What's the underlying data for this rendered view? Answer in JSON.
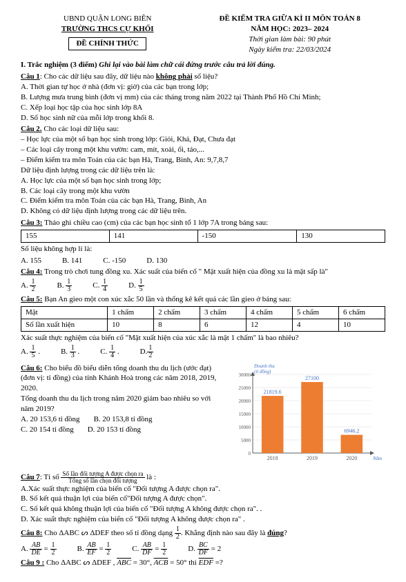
{
  "header": {
    "district": "UBND QUẬN LONG BIÊN",
    "school": "TRƯỜNG THCS CỰ KHỐI",
    "official": "ĐỀ CHÍNH THỨC",
    "exam_title": "ĐỀ KIỂM TRA GIỮA KÌ II MÔN TOÁN 8",
    "year": "NĂM HỌC: 2023– 2024",
    "duration": "Thời gian làm bài: 90 phút",
    "date": "Ngày kiểm tra: 22/03/2024"
  },
  "part1": {
    "title": "I. Trắc nghiệm (3 điểm)",
    "instr": "Ghi lại vào bài làm chữ cái đứng trước câu trả lời đúng."
  },
  "q1": {
    "stem_a": "Câu 1",
    "stem_b": ": Cho các dữ liệu sau đây, dữ liệu nào ",
    "stem_c": "không phải",
    "stem_d": " số liệu?",
    "a": "A. Thời gian tự học ở nhà (đơn vị: giờ) của các bạn trong lớp;",
    "b": "B. Lượng mưa trung bình (đơn vị mm) của các tháng trong năm 2022 tại Thành Phố Hồ Chí Minh;",
    "c": "C. Xếp loại học tập của học sinh lớp 8A",
    "d": "D. Số học sinh nữ của mỗi lớp trong khối 8."
  },
  "q2": {
    "stem": "Câu 2.",
    "stem2": " Cho các loại dữ liệu sau:",
    "l1": "– Học lực của một số bạn học sinh trong lớp: Giỏi, Khá, Đạt, Chưa đạt",
    "l2": "– Các loại cây trong một khu vườn: cam, mít, xoài, ổi, táo,...",
    "l3": "– Điểm kiểm tra môn Toán của các bạn Hà, Trang, Bình, An: 9,7,8,7",
    "l4": "Dữ liệu định lượng trong các dữ liệu trên là:",
    "a": "A. Học lực của một số bạn học sinh trong lớp;",
    "b": "B. Các loại cây trong một khu vườn",
    "c": "C. Điểm kiểm tra môn Toán của các bạn Hà, Trang, Bình, An",
    "d": "D. Không có dữ liệu định lượng trong các dữ liệu trên."
  },
  "q3": {
    "stem": "Câu 3:",
    "stem2": " Tháo ghi chiều cao (cm) của các bạn học sinh tổ 1 lớp 7A trong bảng sau:",
    "row": [
      "155",
      "141",
      "-150",
      "130"
    ],
    "q": "Số liệu không hợp lí là:",
    "a": "A. 155",
    "b": "B. 141",
    "c": "C. -150",
    "d": "D. 130"
  },
  "q4": {
    "stem": "Câu 4:",
    "stem2": " Trong trò chơi tung đồng xu. Xác suất của biến cố \" Mặt xuất hiện của đồng xu là mặt sấp là\"",
    "a": "A.",
    "av": {
      "n": "1",
      "d": "2"
    },
    "b": "B.",
    "bv": {
      "n": "1",
      "d": "3"
    },
    "c": "C.",
    "cv": {
      "n": "1",
      "d": "4"
    },
    "d": "D.",
    "dv": {
      "n": "1",
      "d": "5"
    }
  },
  "q5": {
    "stem": "Câu 5:",
    "stem2": " Bạn An gieo một con xúc xắc 50 lần và thống kê kết quả các lần gieo ở bảng sau:",
    "head": [
      "Mặt",
      "1 chấm",
      "2 chấm",
      "3 chấm",
      "4 chấm",
      "5 chấm",
      "6 chấm"
    ],
    "row": [
      "Số lần xuất hiện",
      "10",
      "8",
      "6",
      "12",
      "4",
      "10"
    ],
    "q": "Xác suất thực nghiệm của biến cố \"Mặt xuất hiện của xúc xắc là mặt 1 chấm\" là bao nhiêu?",
    "a": "A.",
    "av": {
      "n": "1",
      "d": "5"
    },
    "b": "B.",
    "bv": {
      "n": "1",
      "d": "3"
    },
    "c": "C.",
    "cv": {
      "n": "1",
      "d": "4"
    },
    "d": "D.",
    "dv": {
      "n": "1",
      "d": "2"
    }
  },
  "q6": {
    "stem": "Câu 6:",
    "stem2": "  Cho biểu đồ biểu diễn tổng doanh thu du lịch (ước đạt) (đơn vị: tỉ đồng) của tỉnh Khánh Hoà trong các năm 2018, 2019, 2020.",
    "q": "Tổng doanh thu du lịch trong năm 2020 giảm bao nhiêu so với năm 2019?",
    "a": "A. 20 153,6 tỉ đồng",
    "b": "B. 20 153,8 tỉ đồng",
    "c": "C. 20 154 tỉ đồng",
    "d": "D. 20 153 tỉ đồng",
    "chart": {
      "type": "bar",
      "ylabel": "Doanh thu\n(tỉ đồng)",
      "xlabel": "Năm",
      "categories": [
        "2018",
        "2019",
        "2020"
      ],
      "values": [
        21819.6,
        27100,
        6946.2
      ],
      "value_labels": [
        "21819.6",
        "27100",
        "6946.2"
      ],
      "bar_color": "#ed7d31",
      "ylim": [
        0,
        30000
      ],
      "ytick_step": 5000,
      "yticks": [
        "0",
        "5000",
        "10000",
        "15000",
        "20000",
        "25000",
        "30000"
      ],
      "label_color": "#4472c4",
      "grid_color": "#d9d9d9",
      "axis_color": "#595959",
      "background": "#ffffff",
      "bar_width": 0.55,
      "label_fontsize": 8
    }
  },
  "q7": {
    "stem": "Câu 7",
    "stem2": ": Tỉ số ",
    "frac": {
      "n": "Số lần đối tượng A được chọn ra",
      "d": "Tổng số lần chọn đối tượng"
    },
    "stem3": "  là :",
    "a": "A.Xác suất thực nghiệm của biến cố \"Đối tượng A được chọn ra\".",
    "b": "B. Số kết quả thuận lợi của biến cố\"Đối tượng A được chọn\".",
    "c": "C. Số kết quả không thuận lợi của biến cố \"Đối tượng A không được chọn ra\". .",
    "d": "D. Xác suất thực nghiệm của biến cố \"Đối tượng A không được chọn ra\" ."
  },
  "q8": {
    "stem": "Câu 8:",
    "stem2": " Cho ΔABC ᔕ ΔDEF  theo số tỉ đồng dạng ",
    "k": {
      "n": "1",
      "d": "2"
    },
    "stem3": ". Khẳng định nào sau đây là ",
    "stem4": "đúng",
    "stem5": "?",
    "a": "A. ",
    "af": {
      "n": "AB",
      "d": "DE"
    },
    "aeq": " = ",
    "av": {
      "n": "1",
      "d": "2"
    },
    "b": "B. ",
    "bf": {
      "n": "AB",
      "d": "EF"
    },
    "beq": " = ",
    "bv": {
      "n": "1",
      "d": "2"
    },
    "c": "C. ",
    "cf": {
      "n": "AB",
      "d": "DF"
    },
    "ceq": " = ",
    "cv": {
      "n": "1",
      "d": "2"
    },
    "d": "D. ",
    "df": {
      "n": "BC",
      "d": "DF"
    },
    "deq": " = 2"
  },
  "q9": {
    "stem": "Câu 9 :",
    "stem2": " Cho  ΔABC ᔕ ΔDEF ,  ",
    "a1": "ABC",
    "eq1": " = 30°,  ",
    "a2": "ACB",
    "eq2": " = 50° thì ",
    "a3": "EDF",
    "eq3": " =?"
  }
}
